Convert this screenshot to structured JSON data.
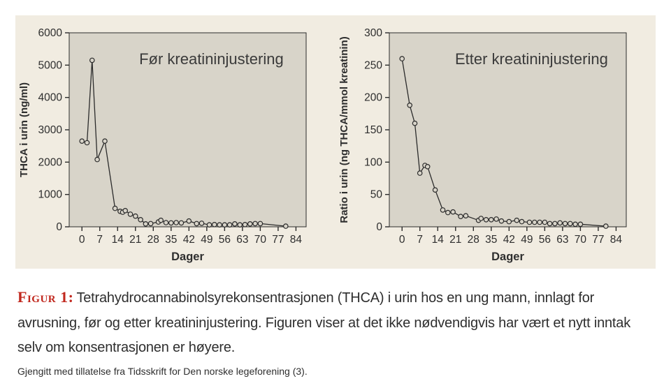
{
  "colors": {
    "page_bg": "#ffffff",
    "panel_bg": "#f1ece1",
    "plot_bg": "#d8d4c9",
    "line": "#2b2b2b",
    "axis": "#2b2b2b",
    "text": "#2e2e2e",
    "figure_label_red": "#c1281e"
  },
  "caption": {
    "label": "Figur 1:",
    "text": "Tetrahydrocannabinolsyrekonsentrasjonen (THCA) i urin hos en ung mann, innlagt for avrusning, før og etter kreatininjustering. Figuren viser at det ikke nødvendigvis har vært et nytt inntak selv om konsentrasjonen er høyere.",
    "credit": "Gjengitt med tillatelse fra Tidsskrift for Den norske legeforening (3)."
  },
  "chart_data": [
    {
      "type": "line",
      "title": "Før kreatininjustering",
      "xlabel": "Dager",
      "ylabel": "THCA i urin (ng/ml)",
      "xlim": [
        -5,
        88
      ],
      "ylim": [
        0,
        6000
      ],
      "xticks": [
        0,
        7,
        14,
        21,
        28,
        35,
        42,
        49,
        56,
        63,
        70,
        77,
        84
      ],
      "yticks": [
        0,
        1000,
        2000,
        3000,
        4000,
        5000,
        6000
      ],
      "grid": false,
      "legend": "none",
      "marker": "open-circle",
      "points": [
        [
          0,
          2650
        ],
        [
          2,
          2600
        ],
        [
          4,
          5150
        ],
        [
          6,
          2080
        ],
        [
          9,
          2650
        ],
        [
          13,
          570
        ],
        [
          15,
          480
        ],
        [
          16,
          450
        ],
        [
          17,
          500
        ],
        [
          19,
          390
        ],
        [
          21,
          330
        ],
        [
          23,
          220
        ],
        [
          25,
          90
        ],
        [
          27,
          100
        ],
        [
          30,
          150
        ],
        [
          31,
          200
        ],
        [
          33,
          130
        ],
        [
          35,
          120
        ],
        [
          37,
          130
        ],
        [
          39,
          120
        ],
        [
          42,
          180
        ],
        [
          45,
          100
        ],
        [
          47,
          110
        ],
        [
          50,
          60
        ],
        [
          52,
          70
        ],
        [
          54,
          60
        ],
        [
          56,
          60
        ],
        [
          58,
          60
        ],
        [
          60,
          90
        ],
        [
          62,
          60
        ],
        [
          64,
          70
        ],
        [
          66,
          90
        ],
        [
          68,
          100
        ],
        [
          70,
          100
        ],
        [
          80,
          20
        ]
      ]
    },
    {
      "type": "line",
      "title": "Etter kreatininjustering",
      "xlabel": "Dager",
      "ylabel": "Ratio i urin (ng THCA/mmol kreatinin)",
      "xlim": [
        -5,
        88
      ],
      "ylim": [
        0,
        300
      ],
      "xticks": [
        0,
        7,
        14,
        21,
        28,
        35,
        42,
        49,
        56,
        63,
        70,
        77,
        84
      ],
      "yticks": [
        0,
        50,
        100,
        150,
        200,
        250,
        300
      ],
      "grid": false,
      "legend": "none",
      "marker": "open-circle",
      "points": [
        [
          0,
          260
        ],
        [
          3,
          188
        ],
        [
          5,
          160
        ],
        [
          7,
          83
        ],
        [
          9,
          95
        ],
        [
          10,
          93
        ],
        [
          13,
          57
        ],
        [
          16,
          26
        ],
        [
          18,
          22
        ],
        [
          20,
          23
        ],
        [
          23,
          16
        ],
        [
          25,
          17
        ],
        [
          30,
          10
        ],
        [
          31,
          13
        ],
        [
          33,
          11
        ],
        [
          35,
          11
        ],
        [
          37,
          12
        ],
        [
          39,
          9
        ],
        [
          42,
          8
        ],
        [
          45,
          10
        ],
        [
          47,
          8
        ],
        [
          50,
          7
        ],
        [
          52,
          7
        ],
        [
          54,
          7
        ],
        [
          56,
          7
        ],
        [
          58,
          5
        ],
        [
          60,
          5
        ],
        [
          62,
          6
        ],
        [
          64,
          5
        ],
        [
          66,
          5
        ],
        [
          68,
          4
        ],
        [
          70,
          4
        ],
        [
          80,
          1
        ]
      ]
    }
  ]
}
